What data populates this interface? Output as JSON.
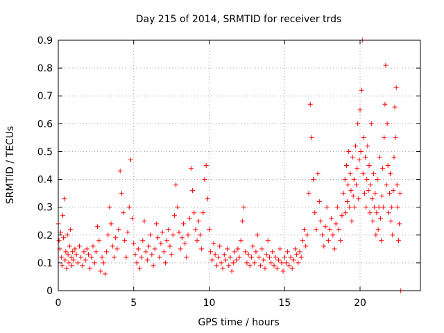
{
  "chart_data": {
    "type": "scatter",
    "title": "Day 215 of 2014, SRMTID for receiver trds",
    "xlabel": "GPS time / hours",
    "ylabel": "SRMTID / TECUs",
    "xlim": [
      0,
      24
    ],
    "ylim": [
      0,
      0.9
    ],
    "xticks": [
      0,
      5,
      10,
      15,
      20
    ],
    "yticks": [
      0,
      0.1,
      0.2,
      0.3,
      0.4,
      0.5,
      0.6,
      0.7,
      0.8,
      0.9
    ],
    "grid": true,
    "marker": "plus",
    "color": "#ff0000",
    "series": [
      {
        "name": "SRMTID",
        "points": [
          [
            0.0,
            0.24
          ],
          [
            0.05,
            0.18
          ],
          [
            0.1,
            0.15
          ],
          [
            0.15,
            0.21
          ],
          [
            0.2,
            0.12
          ],
          [
            0.25,
            0.09
          ],
          [
            0.3,
            0.27
          ],
          [
            0.35,
            0.19
          ],
          [
            0.4,
            0.33
          ],
          [
            0.45,
            0.11
          ],
          [
            0.5,
            0.14
          ],
          [
            0.55,
            0.08
          ],
          [
            0.6,
            0.2
          ],
          [
            0.65,
            0.13
          ],
          [
            0.7,
            0.1
          ],
          [
            0.75,
            0.16
          ],
          [
            0.8,
            0.22
          ],
          [
            0.85,
            0.12
          ],
          [
            0.9,
            0.09
          ],
          [
            0.95,
            0.14
          ],
          [
            1.0,
            0.11
          ],
          [
            1.1,
            0.15
          ],
          [
            1.2,
            0.13
          ],
          [
            1.3,
            0.1
          ],
          [
            1.4,
            0.16
          ],
          [
            1.5,
            0.12
          ],
          [
            1.6,
            0.09
          ],
          [
            1.7,
            0.14
          ],
          [
            1.8,
            0.11
          ],
          [
            1.9,
            0.15
          ],
          [
            2.0,
            0.13
          ],
          [
            2.1,
            0.08
          ],
          [
            2.2,
            0.12
          ],
          [
            2.3,
            0.16
          ],
          [
            2.4,
            0.1
          ],
          [
            2.5,
            0.14
          ],
          [
            2.6,
            0.23
          ],
          [
            2.7,
            0.18
          ],
          [
            2.8,
            0.07
          ],
          [
            2.9,
            0.12
          ],
          [
            3.0,
            0.1
          ],
          [
            3.1,
            0.06
          ],
          [
            3.2,
            0.14
          ],
          [
            3.3,
            0.2
          ],
          [
            3.4,
            0.3
          ],
          [
            3.5,
            0.24
          ],
          [
            3.6,
            0.16
          ],
          [
            3.7,
            0.12
          ],
          [
            3.8,
            0.19
          ],
          [
            3.9,
            0.15
          ],
          [
            4.0,
            0.22
          ],
          [
            4.1,
            0.43
          ],
          [
            4.2,
            0.35
          ],
          [
            4.3,
            0.28
          ],
          [
            4.4,
            0.18
          ],
          [
            4.5,
            0.12
          ],
          [
            4.6,
            0.21
          ],
          [
            4.7,
            0.3
          ],
          [
            4.8,
            0.47
          ],
          [
            4.9,
            0.26
          ],
          [
            5.0,
            0.17
          ],
          [
            5.1,
            0.13
          ],
          [
            5.2,
            0.1
          ],
          [
            5.3,
            0.15
          ],
          [
            5.4,
            0.08
          ],
          [
            5.5,
            0.12
          ],
          [
            5.6,
            0.18
          ],
          [
            5.7,
            0.25
          ],
          [
            5.8,
            0.14
          ],
          [
            5.9,
            0.11
          ],
          [
            6.0,
            0.16
          ],
          [
            6.1,
            0.2
          ],
          [
            6.2,
            0.13
          ],
          [
            6.3,
            0.09
          ],
          [
            6.4,
            0.15
          ],
          [
            6.5,
            0.24
          ],
          [
            6.6,
            0.19
          ],
          [
            6.7,
            0.12
          ],
          [
            6.8,
            0.17
          ],
          [
            6.9,
            0.21
          ],
          [
            7.0,
            0.14
          ],
          [
            7.1,
            0.1
          ],
          [
            7.2,
            0.18
          ],
          [
            7.3,
            0.22
          ],
          [
            7.4,
            0.16
          ],
          [
            7.5,
            0.13
          ],
          [
            7.6,
            0.2
          ],
          [
            7.7,
            0.27
          ],
          [
            7.8,
            0.38
          ],
          [
            7.9,
            0.3
          ],
          [
            8.0,
            0.21
          ],
          [
            8.1,
            0.15
          ],
          [
            8.2,
            0.19
          ],
          [
            8.3,
            0.24
          ],
          [
            8.4,
            0.17
          ],
          [
            8.5,
            0.12
          ],
          [
            8.6,
            0.2
          ],
          [
            8.7,
            0.26
          ],
          [
            8.8,
            0.44
          ],
          [
            8.9,
            0.36
          ],
          [
            9.0,
            0.28
          ],
          [
            9.1,
            0.22
          ],
          [
            9.2,
            0.18
          ],
          [
            9.3,
            0.25
          ],
          [
            9.4,
            0.2
          ],
          [
            9.5,
            0.15
          ],
          [
            9.6,
            0.28
          ],
          [
            9.7,
            0.4
          ],
          [
            9.8,
            0.45
          ],
          [
            9.9,
            0.33
          ],
          [
            10.0,
            0.22
          ],
          [
            10.1,
            0.14
          ],
          [
            10.2,
            0.11
          ],
          [
            10.3,
            0.17
          ],
          [
            10.4,
            0.13
          ],
          [
            10.5,
            0.09
          ],
          [
            10.6,
            0.12
          ],
          [
            10.7,
            0.16
          ],
          [
            10.8,
            0.1
          ],
          [
            10.9,
            0.08
          ],
          [
            11.0,
            0.13
          ],
          [
            11.1,
            0.11
          ],
          [
            11.2,
            0.15
          ],
          [
            11.3,
            0.09
          ],
          [
            11.4,
            0.12
          ],
          [
            11.5,
            0.07
          ],
          [
            11.6,
            0.1
          ],
          [
            11.7,
            0.14
          ],
          [
            11.8,
            0.11
          ],
          [
            11.9,
            0.15
          ],
          [
            12.0,
            0.12
          ],
          [
            12.1,
            0.18
          ],
          [
            12.2,
            0.25
          ],
          [
            12.3,
            0.3
          ],
          [
            12.4,
            0.14
          ],
          [
            12.5,
            0.1
          ],
          [
            12.6,
            0.13
          ],
          [
            12.7,
            0.09
          ],
          [
            12.8,
            0.12
          ],
          [
            12.9,
            0.16
          ],
          [
            13.0,
            0.1
          ],
          [
            13.1,
            0.14
          ],
          [
            13.2,
            0.2
          ],
          [
            13.3,
            0.12
          ],
          [
            13.4,
            0.09
          ],
          [
            13.5,
            0.15
          ],
          [
            13.6,
            0.11
          ],
          [
            13.7,
            0.08
          ],
          [
            13.8,
            0.13
          ],
          [
            13.9,
            0.18
          ],
          [
            14.0,
            0.12
          ],
          [
            14.1,
            0.1
          ],
          [
            14.2,
            0.14
          ],
          [
            14.3,
            0.09
          ],
          [
            14.4,
            0.12
          ],
          [
            14.5,
            0.08
          ],
          [
            14.6,
            0.11
          ],
          [
            14.7,
            0.15
          ],
          [
            14.8,
            0.1
          ],
          [
            14.9,
            0.07
          ],
          [
            15.0,
            0.12
          ],
          [
            15.1,
            0.1
          ],
          [
            15.2,
            0.14
          ],
          [
            15.3,
            0.09
          ],
          [
            15.4,
            0.12
          ],
          [
            15.5,
            0.08
          ],
          [
            15.6,
            0.11
          ],
          [
            15.7,
            0.15
          ],
          [
            15.8,
            0.13
          ],
          [
            15.9,
            0.1
          ],
          [
            16.0,
            0.14
          ],
          [
            16.1,
            0.12
          ],
          [
            16.2,
            0.18
          ],
          [
            16.3,
            0.22
          ],
          [
            16.4,
            0.16
          ],
          [
            16.5,
            0.2
          ],
          [
            16.6,
            0.35
          ],
          [
            16.7,
            0.67
          ],
          [
            16.8,
            0.55
          ],
          [
            16.9,
            0.4
          ],
          [
            17.0,
            0.28
          ],
          [
            17.1,
            0.22
          ],
          [
            17.2,
            0.42
          ],
          [
            17.3,
            0.32
          ],
          [
            17.4,
            0.25
          ],
          [
            17.5,
            0.2
          ],
          [
            17.6,
            0.16
          ],
          [
            17.7,
            0.23
          ],
          [
            17.8,
            0.3
          ],
          [
            17.9,
            0.18
          ],
          [
            18.0,
            0.22
          ],
          [
            18.1,
            0.26
          ],
          [
            18.2,
            0.2
          ],
          [
            18.3,
            0.15
          ],
          [
            18.4,
            0.24
          ],
          [
            18.5,
            0.3
          ],
          [
            18.6,
            0.22
          ],
          [
            18.7,
            0.18
          ],
          [
            18.8,
            0.27
          ],
          [
            18.9,
            0.35
          ],
          [
            19.0,
            0.4
          ],
          [
            19.05,
            0.28
          ],
          [
            19.1,
            0.45
          ],
          [
            19.15,
            0.32
          ],
          [
            19.2,
            0.38
          ],
          [
            19.25,
            0.5
          ],
          [
            19.3,
            0.3
          ],
          [
            19.35,
            0.42
          ],
          [
            19.4,
            0.36
          ],
          [
            19.45,
            0.25
          ],
          [
            19.5,
            0.48
          ],
          [
            19.55,
            0.34
          ],
          [
            19.6,
            0.4
          ],
          [
            19.65,
            0.3
          ],
          [
            19.7,
            0.52
          ],
          [
            19.75,
            0.38
          ],
          [
            19.8,
            0.44
          ],
          [
            19.85,
            0.6
          ],
          [
            19.9,
            0.33
          ],
          [
            19.95,
            0.47
          ],
          [
            20.0,
            0.65
          ],
          [
            20.05,
            0.5
          ],
          [
            20.1,
            0.72
          ],
          [
            20.15,
            0.9
          ],
          [
            20.2,
            0.42
          ],
          [
            20.25,
            0.55
          ],
          [
            20.3,
            0.35
          ],
          [
            20.35,
            0.48
          ],
          [
            20.4,
            0.3
          ],
          [
            20.45,
            0.4
          ],
          [
            20.5,
            0.52
          ],
          [
            20.55,
            0.36
          ],
          [
            20.6,
            0.45
          ],
          [
            20.65,
            0.28
          ],
          [
            20.7,
            0.38
          ],
          [
            20.75,
            0.6
          ],
          [
            20.8,
            0.33
          ],
          [
            20.85,
            0.25
          ],
          [
            20.9,
            0.42
          ],
          [
            20.95,
            0.3
          ],
          [
            21.0,
            0.35
          ],
          [
            21.05,
            0.2
          ],
          [
            21.1,
            0.28
          ],
          [
            21.15,
            0.4
          ],
          [
            21.2,
            0.22
          ],
          [
            21.25,
            0.3
          ],
          [
            21.3,
            0.48
          ],
          [
            21.35,
            0.26
          ],
          [
            21.4,
            0.18
          ],
          [
            21.45,
            0.34
          ],
          [
            21.5,
            0.44
          ],
          [
            21.55,
            0.3
          ],
          [
            21.6,
            0.55
          ],
          [
            21.65,
            0.67
          ],
          [
            21.7,
            0.81
          ],
          [
            21.75,
            0.38
          ],
          [
            21.8,
            0.6
          ],
          [
            21.85,
            0.45
          ],
          [
            21.9,
            0.28
          ],
          [
            21.95,
            0.35
          ],
          [
            22.0,
            0.42
          ],
          [
            22.05,
            0.25
          ],
          [
            22.1,
            0.3
          ],
          [
            22.15,
            0.2
          ],
          [
            22.2,
            0.36
          ],
          [
            22.25,
            0.48
          ],
          [
            22.3,
            0.66
          ],
          [
            22.35,
            0.55
          ],
          [
            22.4,
            0.73
          ],
          [
            22.45,
            0.38
          ],
          [
            22.5,
            0.3
          ],
          [
            22.55,
            0.18
          ],
          [
            22.6,
            0.24
          ],
          [
            22.65,
            0.35
          ],
          [
            22.7,
            0.0
          ]
        ]
      }
    ]
  }
}
